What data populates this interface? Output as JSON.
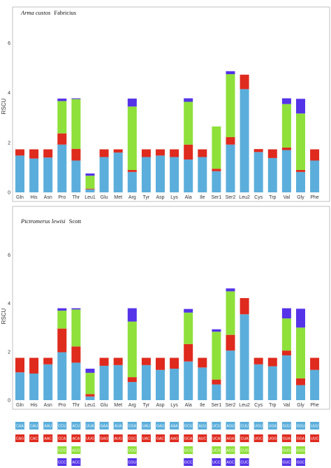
{
  "chart_data": [
    {
      "type": "bar",
      "stacked": true,
      "title_italic": "Arma custos",
      "title_rest": "Fabricius",
      "ylabel": "RSCU",
      "ylim": [
        0,
        7
      ],
      "yticks": [
        0,
        2,
        4,
        6
      ],
      "categories": [
        "Gln",
        "His",
        "Asn",
        "Pro",
        "Thr",
        "Leu1",
        "Glu",
        "Met",
        "Arg",
        "Tyr",
        "Asp",
        "Lys",
        "Ala",
        "Ile",
        "Ser1",
        "Ser2",
        "Leu2",
        "Cys",
        "Trp",
        "Val",
        "Gly",
        "Phe"
      ],
      "series": [
        {
          "values": [
            1.48,
            1.36,
            1.4,
            1.92,
            1.28,
            0.12,
            1.42,
            1.6,
            0.82,
            1.42,
            1.48,
            1.42,
            1.32,
            1.42,
            0.85,
            1.92,
            4.15,
            1.62,
            1.38,
            1.7,
            0.82,
            1.28
          ]
        },
        {
          "values": [
            0.25,
            0.37,
            0.33,
            0.45,
            0.47,
            0.03,
            0.31,
            0.13,
            0.08,
            0.31,
            0.25,
            0.31,
            0.6,
            0.31,
            0.1,
            0.3,
            0.58,
            0.12,
            0.35,
            0.1,
            0.08,
            0.45
          ]
        },
        {
          "values": [
            0,
            0,
            0,
            1.3,
            2.0,
            0.52,
            0,
            0,
            2.55,
            0,
            0,
            0,
            1.72,
            0,
            1.7,
            2.53,
            0,
            0,
            0,
            1.75,
            2.27,
            0
          ]
        },
        {
          "values": [
            0,
            0,
            0,
            0.1,
            0.03,
            0.09,
            0,
            0,
            0.32,
            0,
            0,
            0,
            0.14,
            0,
            0,
            0.12,
            0,
            0,
            0,
            0.23,
            0.59,
            0
          ]
        }
      ],
      "colors": [
        "#5BAEDB",
        "#DF2A1E",
        "#8FE03A",
        "#5533E8"
      ]
    },
    {
      "type": "bar",
      "stacked": true,
      "title_italic": "Pictromerus lewisi",
      "title_rest": "Scott",
      "ylabel": "RSCU",
      "ylim": [
        0,
        7
      ],
      "yticks": [
        0,
        2,
        4,
        6
      ],
      "categories": [
        "Gln",
        "His",
        "Asn",
        "Pro",
        "Thr",
        "Leu1",
        "Glu",
        "Met",
        "Arg",
        "Tyr",
        "Asp",
        "Lys",
        "Ala",
        "Ile",
        "Ser1",
        "Ser2",
        "Leu2",
        "Cys",
        "Trp",
        "Val",
        "Gly",
        "Phe"
      ],
      "series": [
        {
          "values": [
            1.15,
            1.1,
            1.48,
            1.98,
            1.55,
            0.15,
            1.42,
            1.45,
            0.75,
            1.45,
            1.25,
            1.3,
            1.6,
            1.35,
            0.65,
            2.05,
            3.55,
            1.48,
            1.4,
            1.85,
            0.62,
            1.25
          ]
        },
        {
          "values": [
            0.6,
            0.65,
            0.27,
            0.98,
            0.67,
            0.1,
            0.33,
            0.3,
            0.2,
            0.3,
            0.5,
            0.45,
            0.72,
            0.4,
            0.2,
            0.65,
            0.67,
            0.27,
            0.35,
            0.2,
            0.28,
            0.5
          ]
        },
        {
          "values": [
            0,
            0,
            0,
            0.74,
            1.53,
            0.88,
            0,
            0,
            2.3,
            0,
            0,
            0,
            1.3,
            0,
            1.98,
            1.8,
            0,
            0,
            0,
            1.33,
            2.1,
            0
          ]
        },
        {
          "values": [
            0,
            0,
            0,
            0.1,
            0.05,
            0.17,
            0,
            0,
            0.55,
            0,
            0,
            0,
            0.15,
            0,
            0.1,
            0.12,
            0,
            0,
            0,
            0.42,
            0.78,
            0
          ]
        }
      ],
      "colors": [
        "#5BAEDB",
        "#DF2A1E",
        "#8FE03A",
        "#5533E8"
      ]
    }
  ],
  "codon_table": [
    [
      "CAA",
      "CAG"
    ],
    [
      "CAU",
      "CAC"
    ],
    [
      "AAU",
      "AAC"
    ],
    [
      "CCU",
      "CCA",
      "CCG",
      "CCC"
    ],
    [
      "ACU",
      "ACA",
      "ACG",
      "ACC"
    ],
    [
      "UUA",
      "UUG"
    ],
    [
      "GAA",
      "GAG"
    ],
    [
      "AUA",
      "AUG"
    ],
    [
      "CGA",
      "CGC",
      "CGG",
      "CGU"
    ],
    [
      "UAU",
      "UAC"
    ],
    [
      "GAU",
      "GAC"
    ],
    [
      "AAA",
      "AAG"
    ],
    [
      "GCU",
      "GCA",
      "GCG",
      "GCC"
    ],
    [
      "AUU",
      "AUC"
    ],
    [
      "UCU",
      "UCA",
      "UCG",
      "UCC"
    ],
    [
      "AGU",
      "AGA",
      "AGG",
      "AGC"
    ],
    [
      "CUU",
      "CUA",
      "CUG",
      "CUC"
    ],
    [
      "UGU",
      "UGC"
    ],
    [
      "UGA",
      "UGG"
    ],
    [
      "GUU",
      "GUA",
      "GUG",
      "GUC"
    ],
    [
      "GGU",
      "GGA",
      "GGG",
      "GGC"
    ],
    [
      "UUU",
      "UUC"
    ]
  ]
}
